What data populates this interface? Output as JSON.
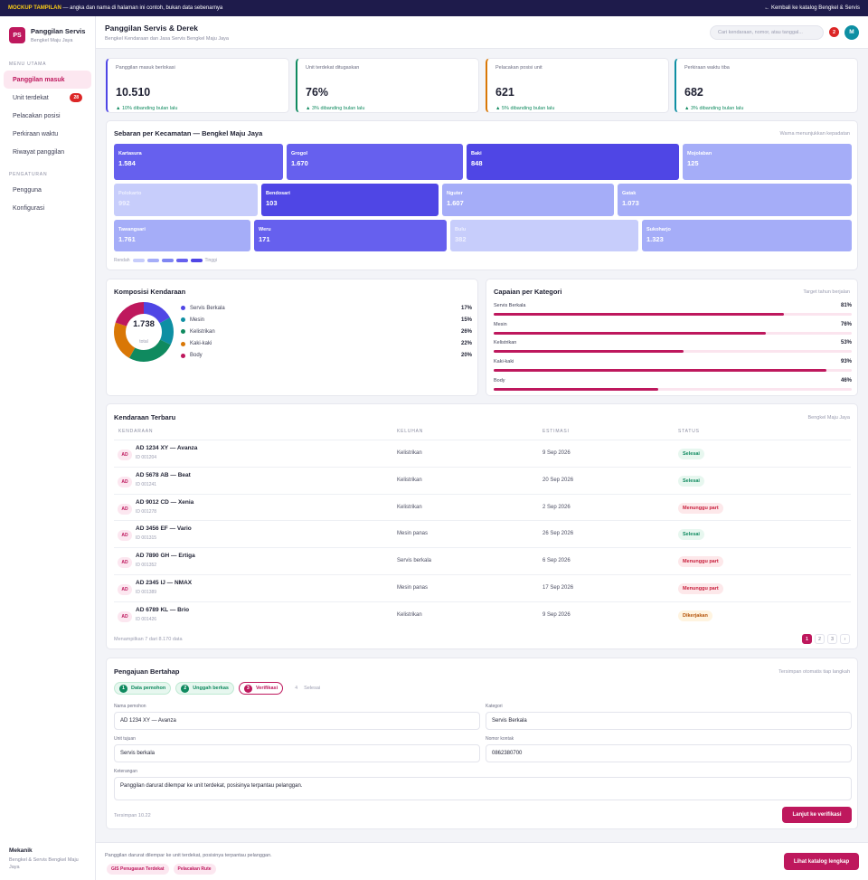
{
  "banner": {
    "tag": "MOCKUP TAMPILAN",
    "text": " — angka dan nama di halaman ini contoh, bukan data sebenarnya",
    "back_link": "← Kembali ke katalog Bengkel & Servis"
  },
  "brand": {
    "logo": "PS",
    "title": "Panggilan Servis",
    "subtitle": "Bengkel Maju Jaya"
  },
  "sidebar": {
    "section_main": "MENU UTAMA",
    "items": [
      {
        "label": "Panggilan masuk"
      },
      {
        "label": "Unit terdekat",
        "badge": "28"
      },
      {
        "label": "Pelacakan posisi"
      },
      {
        "label": "Perkiraan waktu"
      },
      {
        "label": "Riwayat panggilan"
      }
    ],
    "section_settings": "PENGATURAN",
    "settings_items": [
      {
        "label": "Pengguna"
      },
      {
        "label": "Konfigurasi"
      }
    ],
    "footer_name": "Mekanik",
    "footer_desc": "Bengkel & Servis Bengkel Maju Jaya"
  },
  "header": {
    "title": "Panggilan Servis & Derek",
    "subtitle": "Bengkel Kendaraan dan Jasa Servis Bengkel Maju Jaya",
    "search_placeholder": "Cari kendaraan, nomor, atau tanggal...",
    "notif_count": "2",
    "avatar": "M"
  },
  "kpis": [
    {
      "label": "Panggilan masuk berlokasi",
      "value": "10.510",
      "change": "▲ 10% dibanding bulan lalu",
      "accent": "#4f46e5"
    },
    {
      "label": "Unit terdekat ditugaskan",
      "value": "76%",
      "change": "▲ 3% dibanding bulan lalu",
      "accent": "#0f8a5f"
    },
    {
      "label": "Pelacakan posisi unit",
      "value": "621",
      "change": "▲ 5% dibanding bulan lalu",
      "accent": "#d97706"
    },
    {
      "label": "Perkiraan waktu tiba",
      "value": "682",
      "change": "▲ 3% dibanding bulan lalu",
      "accent": "#0e8fa3"
    }
  ],
  "treemap": {
    "title": "Sebaran per Kecamatan — Bengkel Maju Jaya",
    "hint": "Warna menunjukkan kepadatan",
    "tiles": [
      {
        "name": "Kartasura",
        "value": "1.584",
        "level": 3
      },
      {
        "name": "Grogol",
        "value": "1.670",
        "level": 3
      },
      {
        "name": "Baki",
        "value": "848",
        "level": 4
      },
      {
        "name": "Mojolaban",
        "value": "125",
        "level": 2
      },
      {
        "name": "Polokarto",
        "value": "992",
        "level": 1
      },
      {
        "name": "Bendosari",
        "value": "103",
        "level": 4
      },
      {
        "name": "Nguter",
        "value": "1.607",
        "level": 2
      },
      {
        "name": "Gatak",
        "value": "1.073",
        "level": 2
      },
      {
        "name": "Tawangsari",
        "value": "1.761",
        "level": 2
      },
      {
        "name": "Weru",
        "value": "171",
        "level": 3
      },
      {
        "name": "Bulu",
        "value": "382",
        "level": 1
      },
      {
        "name": "Sukoharjo",
        "value": "1.323",
        "level": 2
      }
    ],
    "legend_low": "Rendah",
    "legend_high": "Tinggi"
  },
  "composition": {
    "title": "Komposisi Kendaraan",
    "total": "1.738",
    "total_label": "total",
    "items": [
      {
        "name": "Servis Berkala",
        "percent": 17,
        "label": "17%",
        "color": "#4f46e5"
      },
      {
        "name": "Mesin",
        "percent": 15,
        "label": "15%",
        "color": "#0e8fa3"
      },
      {
        "name": "Kelistrikan",
        "percent": 26,
        "label": "26%",
        "color": "#0f8a5f"
      },
      {
        "name": "Kaki-kaki",
        "percent": 22,
        "label": "22%",
        "color": "#d97706"
      },
      {
        "name": "Body",
        "percent": 20,
        "label": "20%",
        "color": "#be185d"
      }
    ]
  },
  "achievement": {
    "title": "Capaian per Kategori",
    "hint": "Target tahun berjalan",
    "items": [
      {
        "name": "Servis Berkala",
        "value": 81,
        "label": "81%"
      },
      {
        "name": "Mesin",
        "value": 76,
        "label": "76%"
      },
      {
        "name": "Kelistrikan",
        "value": 53,
        "label": "53%"
      },
      {
        "name": "Kaki-kaki",
        "value": 93,
        "label": "93%"
      },
      {
        "name": "Body",
        "value": 46,
        "label": "46%"
      }
    ]
  },
  "table": {
    "title": "Kendaraan Terbaru",
    "hint": "Bengkel Maju Jaya",
    "columns": [
      "KENDARAAN",
      "KELUHAN",
      "ESTIMASI",
      "STATUS"
    ],
    "rows": [
      {
        "icon": "AD",
        "plate": "AD 1234 XY — Avanza",
        "id": "ID 001204",
        "complaint": "Kelistrikan",
        "estimate": "9 Sep 2026",
        "status": "Selesai",
        "kind": "ok"
      },
      {
        "icon": "AD",
        "plate": "AD 5678 AB — Beat",
        "id": "ID 001241",
        "complaint": "Kelistrikan",
        "estimate": "20 Sep 2026",
        "status": "Selesai",
        "kind": "ok"
      },
      {
        "icon": "AD",
        "plate": "AD 9012 CD — Xenia",
        "id": "ID 001278",
        "complaint": "Kelistrikan",
        "estimate": "2 Sep 2026",
        "status": "Menunggu part",
        "kind": "wait"
      },
      {
        "icon": "AD",
        "plate": "AD 3456 EF — Vario",
        "id": "ID 001315",
        "complaint": "Mesin panas",
        "estimate": "26 Sep 2026",
        "status": "Selesai",
        "kind": "ok"
      },
      {
        "icon": "AD",
        "plate": "AD 7890 GH — Ertiga",
        "id": "ID 001352",
        "complaint": "Servis berkala",
        "estimate": "6 Sep 2026",
        "status": "Menunggu part",
        "kind": "wait"
      },
      {
        "icon": "AD",
        "plate": "AD 2345 IJ — NMAX",
        "id": "ID 001389",
        "complaint": "Mesin panas",
        "estimate": "17 Sep 2026",
        "status": "Menunggu part",
        "kind": "wait"
      },
      {
        "icon": "AD",
        "plate": "AD 6789 KL — Brio",
        "id": "ID 001426",
        "complaint": "Kelistrikan",
        "estimate": "9 Sep 2026",
        "status": "Dikerjakan",
        "kind": "work"
      }
    ],
    "footer": "Menampilkan 7 dari 8.170 data",
    "pages": [
      "1",
      "2",
      "3",
      "›"
    ]
  },
  "form": {
    "title": "Pengajuan Bertahap",
    "hint": "Tersimpan otomatis tiap langkah",
    "steps": [
      {
        "num": "1",
        "label": "Data pemohon",
        "state": "done"
      },
      {
        "num": "2",
        "label": "Unggah berkas",
        "state": "done"
      },
      {
        "num": "3",
        "label": "Verifikasi",
        "state": "cur"
      },
      {
        "num": "4",
        "label": "Selesai",
        "state": "next"
      }
    ],
    "applicant_label": "Nama pemohon",
    "applicant_value": "AD 1234 XY — Avanza",
    "category_label": "Kategori",
    "category_value": "Servis Berkala",
    "unit_label": "Unit tujuan",
    "unit_value": "Servis berkala",
    "contact_label": "Nomor kontak",
    "contact_value": "0862380700",
    "notes_label": "Keterangan",
    "notes_value": "Panggilan darurat dilempar ke unit terdekat, posisinya terpantau pelanggan.",
    "saved": "Tersimpan 10.22",
    "submit": "Lanjut ke verifikasi"
  },
  "bottom": {
    "text": "Panggilan darurat dilempar ke unit terdekat, posisinya terpantau pelanggan.",
    "chips": [
      "GIS Penugasan Terdekat",
      "Pelacakan Rute"
    ],
    "button": "Lihat katalog lengkap"
  }
}
